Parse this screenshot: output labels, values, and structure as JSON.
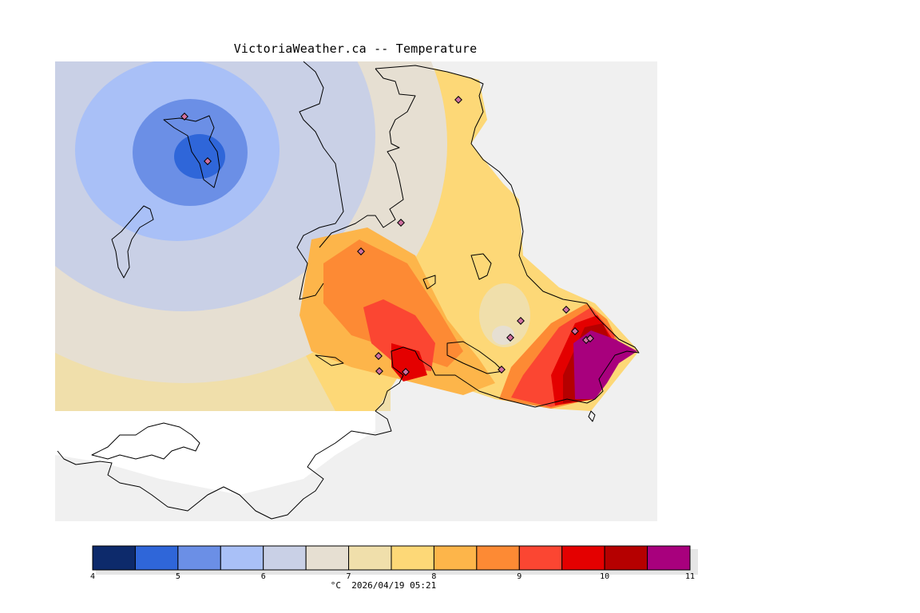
{
  "title": "VictoriaWeather.ca -- Temperature",
  "colorbar": {
    "unit": "°C",
    "timestamp": "2026/04/19 05:21",
    "bins": [
      {
        "from": 4.0,
        "to": 4.5,
        "color": "#0d2a6b"
      },
      {
        "from": 4.5,
        "to": 5.0,
        "color": "#2f66d9"
      },
      {
        "from": 5.0,
        "to": 5.5,
        "color": "#6b8fe6"
      },
      {
        "from": 5.5,
        "to": 6.0,
        "color": "#a9c0f7"
      },
      {
        "from": 6.0,
        "to": 6.5,
        "color": "#c9d0e6"
      },
      {
        "from": 6.5,
        "to": 7.0,
        "color": "#e6dfd2"
      },
      {
        "from": 7.0,
        "to": 7.5,
        "color": "#f0dfab"
      },
      {
        "from": 7.5,
        "to": 8.0,
        "color": "#fdd877"
      },
      {
        "from": 8.0,
        "to": 8.5,
        "color": "#fdb54a"
      },
      {
        "from": 8.5,
        "to": 9.0,
        "color": "#fd8a34"
      },
      {
        "from": 9.0,
        "to": 9.5,
        "color": "#fb4632"
      },
      {
        "from": 9.5,
        "to": 10.0,
        "color": "#e40000"
      },
      {
        "from": 10.0,
        "to": 10.5,
        "color": "#b50000"
      },
      {
        "from": 10.5,
        "to": 11.0,
        "color": "#a8007d"
      }
    ],
    "tick_labels": [
      "4",
      "5",
      "6",
      "7",
      "8",
      "9",
      "10",
      "11"
    ]
  },
  "colors": {
    "background_gray": "#f0f0f0",
    "coast": "#000000",
    "station_marker": "#d070a0"
  },
  "stations_count_visible": 15
}
